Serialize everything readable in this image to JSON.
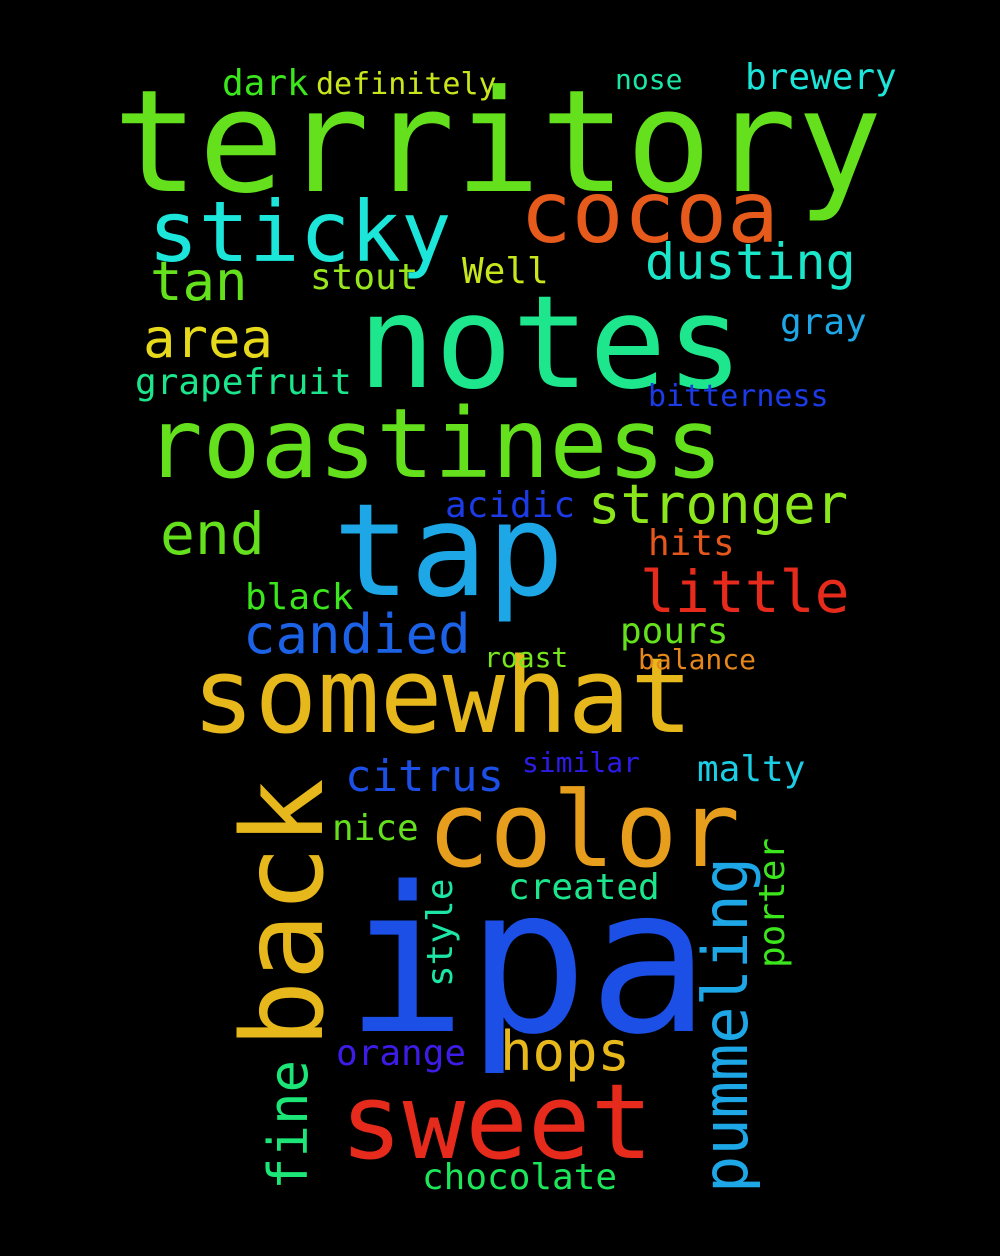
{
  "words": [
    {
      "text": "territory",
      "color": "#64e01c"
    },
    {
      "text": "notes",
      "color": "#1de68c"
    },
    {
      "text": "roastiness",
      "color": "#64e01c"
    },
    {
      "text": "ipa",
      "color": "#1c4fe6"
    },
    {
      "text": "tap",
      "color": "#1ea7e6"
    },
    {
      "text": "somewhat",
      "color": "#e6b81c"
    },
    {
      "text": "color",
      "color": "#e69e1c"
    },
    {
      "text": "back",
      "color": "#e6b81c"
    },
    {
      "text": "sweet",
      "color": "#e62a1c"
    },
    {
      "text": "sticky",
      "color": "#1ce6d9"
    },
    {
      "text": "cocoa",
      "color": "#e65a1c"
    },
    {
      "text": "pummeling",
      "color": "#1ea7e6"
    },
    {
      "text": "little",
      "color": "#e62a1c"
    },
    {
      "text": "stronger",
      "color": "#8ce61c"
    },
    {
      "text": "dusting",
      "color": "#1ce6c9"
    },
    {
      "text": "candied",
      "color": "#1c62e6"
    },
    {
      "text": "citrus",
      "color": "#1c4fe6"
    },
    {
      "text": "hops",
      "color": "#e6b81c"
    },
    {
      "text": "fine",
      "color": "#1ce678"
    },
    {
      "text": "tan",
      "color": "#64e01c"
    },
    {
      "text": "area",
      "color": "#e6d91c"
    },
    {
      "text": "end",
      "color": "#64e01c"
    },
    {
      "text": "chocolate",
      "color": "#1ce65a"
    },
    {
      "text": "grapefruit",
      "color": "#1ce68c"
    },
    {
      "text": "stout",
      "color": "#9ae61c"
    },
    {
      "text": "Well",
      "color": "#c9e61c"
    },
    {
      "text": "gray",
      "color": "#1ea7e6"
    },
    {
      "text": "brewery",
      "color": "#1ce6d9"
    },
    {
      "text": "dark",
      "color": "#3ce61c"
    },
    {
      "text": "definitely",
      "color": "#c9e61c"
    },
    {
      "text": "nose",
      "color": "#1ce6a5"
    },
    {
      "text": "bitterness",
      "color": "#1c3ae6"
    },
    {
      "text": "acidic",
      "color": "#1c3ae6"
    },
    {
      "text": "hits",
      "color": "#e6571c"
    },
    {
      "text": "black",
      "color": "#3ce61c"
    },
    {
      "text": "pours",
      "color": "#64e01c"
    },
    {
      "text": "roast",
      "color": "#78e61c"
    },
    {
      "text": "balance",
      "color": "#e6871c"
    },
    {
      "text": "similar",
      "color": "#2c1ce6"
    },
    {
      "text": "malty",
      "color": "#1ccde6"
    },
    {
      "text": "nice",
      "color": "#64e01c"
    },
    {
      "text": "created",
      "color": "#1ce68c"
    },
    {
      "text": "porter",
      "color": "#3ce61c"
    },
    {
      "text": "style",
      "color": "#1ce6a5"
    },
    {
      "text": "orange",
      "color": "#3c1ce6"
    }
  ]
}
